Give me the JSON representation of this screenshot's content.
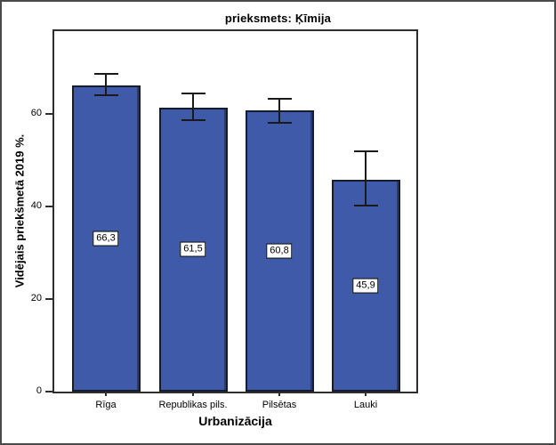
{
  "chart_data": {
    "type": "bar",
    "title": "prieksmets: Ķīmija",
    "xlabel": "Urbanizācija",
    "ylabel": "Vidējais priekšmetā 2019 %.",
    "categories": [
      "Rīga",
      "Republikas pils.",
      "Pilsētas",
      "Lauki"
    ],
    "values": [
      66.3,
      61.5,
      60.8,
      45.9
    ],
    "value_labels": [
      "66,3",
      "61,5",
      "60,8",
      "45,9"
    ],
    "error_bars": [
      {
        "low": 64.0,
        "high": 69.0
      },
      {
        "low": 58.5,
        "high": 64.8
      },
      {
        "low": 57.9,
        "high": 63.6
      },
      {
        "low": 40.0,
        "high": 52.2
      }
    ],
    "yticks": [
      0,
      20,
      40,
      60
    ],
    "ylim": [
      0,
      78
    ],
    "grid": false,
    "legend_position": "none",
    "colors": {
      "bar_fill": "#3E5AA8",
      "bar_edge": "#161c2e",
      "error_bar": "#1a1a1a",
      "frame": "#2e2e2e",
      "background": "#ffffff"
    }
  }
}
